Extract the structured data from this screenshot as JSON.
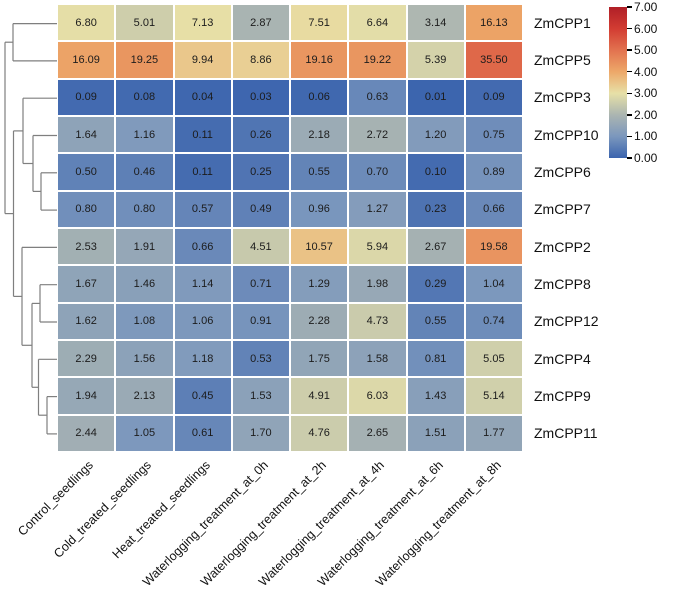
{
  "chart_data": {
    "type": "heatmap",
    "rows": [
      "ZmCPP1",
      "ZmCPP5",
      "ZmCPP3",
      "ZmCPP10",
      "ZmCPP6",
      "ZmCPP7",
      "ZmCPP2",
      "ZmCPP8",
      "ZmCPP12",
      "ZmCPP4",
      "ZmCPP9",
      "ZmCPP11"
    ],
    "columns": [
      "Control_seedlings",
      "Cold_treated_seedlings",
      "Heat_treated_seedlings",
      "Waterlogging_treatment_at_0h",
      "Waterlogging_treatment_at_2h",
      "Waterlogging_treatment_at_4h",
      "Waterlogging_treatment_at_6h",
      "Waterlogging_treatment_at_8h"
    ],
    "values": [
      [
        6.8,
        5.01,
        7.13,
        2.87,
        7.51,
        6.64,
        3.14,
        16.13
      ],
      [
        16.09,
        19.25,
        9.94,
        8.86,
        19.16,
        19.22,
        5.39,
        35.5
      ],
      [
        0.09,
        0.08,
        0.04,
        0.03,
        0.06,
        0.63,
        0.01,
        0.09
      ],
      [
        1.64,
        1.16,
        0.11,
        0.26,
        2.18,
        2.72,
        1.2,
        0.75
      ],
      [
        0.5,
        0.46,
        0.11,
        0.25,
        0.55,
        0.7,
        0.1,
        0.89
      ],
      [
        0.8,
        0.8,
        0.57,
        0.49,
        0.96,
        1.27,
        0.23,
        0.66
      ],
      [
        2.53,
        1.91,
        0.66,
        4.51,
        10.57,
        5.94,
        2.67,
        19.58
      ],
      [
        1.67,
        1.46,
        1.14,
        0.71,
        1.29,
        1.98,
        0.29,
        1.04
      ],
      [
        1.62,
        1.08,
        1.06,
        0.91,
        2.28,
        4.73,
        0.55,
        0.74
      ],
      [
        2.29,
        1.56,
        1.18,
        0.53,
        1.75,
        1.58,
        0.81,
        5.05
      ],
      [
        1.94,
        2.13,
        0.45,
        1.53,
        4.91,
        6.03,
        1.43,
        5.14
      ],
      [
        2.44,
        1.05,
        0.61,
        1.7,
        4.76,
        2.65,
        1.51,
        1.77
      ]
    ],
    "value_decimals": 2,
    "color_scale": {
      "min": 0,
      "max": 7,
      "transform": "log2(value+1)",
      "tick_values": [
        7,
        6,
        5,
        4,
        3,
        2,
        1,
        0
      ],
      "tick_labels": [
        "7.00",
        "6.00",
        "5.00",
        "4.00",
        "3.00",
        "2.00",
        "1.00",
        "0.00"
      ],
      "gradient_stops": [
        "#3b64ae",
        "#7b97bd",
        "#abb5b1",
        "#e7e0a7",
        "#eda869",
        "#e2724f",
        "#d23c32",
        "#b01f27"
      ]
    },
    "dendrogram_segments": [
      [
        13,
        23.6,
        57,
        23.6
      ],
      [
        13,
        60.9,
        57,
        60.9
      ],
      [
        13,
        23.6,
        13,
        60.9
      ],
      [
        5,
        42.2,
        13,
        42.2
      ],
      [
        5,
        42.2,
        5,
        213.6
      ],
      [
        5,
        213.6,
        13.5,
        213.6
      ],
      [
        13.5,
        130.9,
        13.5,
        296.4
      ],
      [
        13.5,
        130.9,
        23,
        130.9
      ],
      [
        23,
        98.2,
        57,
        98.2
      ],
      [
        23,
        98.2,
        23,
        163.5
      ],
      [
        23,
        163.5,
        33,
        163.5
      ],
      [
        33,
        135.5,
        33,
        191.4
      ],
      [
        33,
        135.5,
        57,
        135.5
      ],
      [
        33,
        191.4,
        41,
        191.4
      ],
      [
        41,
        172.8,
        41,
        210.1
      ],
      [
        41,
        172.8,
        57,
        172.8
      ],
      [
        41,
        210.1,
        57,
        210.1
      ],
      [
        13.5,
        296.4,
        22,
        296.4
      ],
      [
        22,
        247.4,
        57,
        247.4
      ],
      [
        22,
        247.4,
        22,
        345.3
      ],
      [
        22,
        345.3,
        32,
        345.3
      ],
      [
        32,
        303.4,
        32,
        387.3
      ],
      [
        32,
        303.4,
        40,
        303.4
      ],
      [
        40,
        284.7,
        40,
        322.0
      ],
      [
        40,
        284.7,
        57,
        284.7
      ],
      [
        40,
        322.0,
        57,
        322.0
      ],
      [
        32,
        387.3,
        38.5,
        387.3
      ],
      [
        38.5,
        359.3,
        38.5,
        415.2
      ],
      [
        38.5,
        359.3,
        57,
        359.3
      ],
      [
        38.5,
        415.2,
        47,
        415.2
      ],
      [
        47,
        396.6,
        47,
        433.9
      ],
      [
        47,
        396.6,
        57,
        396.6
      ],
      [
        47,
        433.9,
        57,
        433.9
      ]
    ]
  },
  "colors": {
    "background": "#ffffff",
    "cell_border": "#ffffff",
    "dendrogram_line": "#7f7f7f",
    "text": "#111111"
  }
}
